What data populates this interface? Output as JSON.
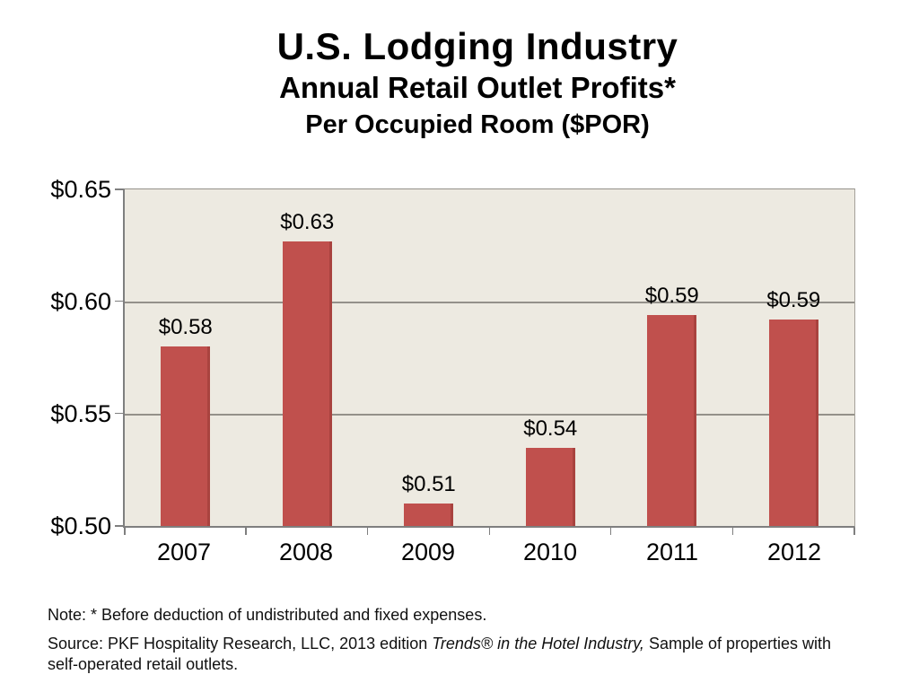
{
  "title": {
    "line1": "U.S. Lodging Industry",
    "line2": "Annual Retail Outlet Profits*",
    "line3": "Per Occupied Room ($POR)"
  },
  "chart_data": {
    "type": "bar",
    "title": "U.S. Lodging Industry",
    "subtitle": "Annual Retail Outlet Profits* Per Occupied Room ($POR)",
    "categories": [
      "2007",
      "2008",
      "2009",
      "2010",
      "2011",
      "2012"
    ],
    "values": [
      0.58,
      0.63,
      0.51,
      0.54,
      0.59,
      0.59
    ],
    "bar_labels": [
      "$0.58",
      "$0.63",
      "$0.51",
      "$0.54",
      "$0.59",
      "$0.59"
    ],
    "plotted_values": [
      0.58,
      0.627,
      0.51,
      0.535,
      0.594,
      0.592
    ],
    "xlabel": "",
    "ylabel": "",
    "ylim": [
      0.5,
      0.65
    ],
    "ytick_values": [
      0.65,
      0.6,
      0.55,
      0.5
    ],
    "ytick_labels": [
      "$0.65",
      "$0.60",
      "$0.55",
      "$0.50"
    ],
    "grid": "horizontal",
    "legend": "none",
    "colors": {
      "bar": "#C0504D",
      "bar_edge": "#A84340",
      "plot_background": "#EDEAE1",
      "gridline": "#94918A",
      "axis": "#7F7F7F",
      "text": "#000000"
    }
  },
  "notes": {
    "note": "Note: * Before deduction of undistributed and fixed expenses.",
    "source_prefix": "Source: PKF Hospitality Research, LLC, 2013 edition ",
    "source_italic": "Trends® in the Hotel Industry,",
    "source_suffix": " Sample of properties with self-operated retail outlets."
  }
}
